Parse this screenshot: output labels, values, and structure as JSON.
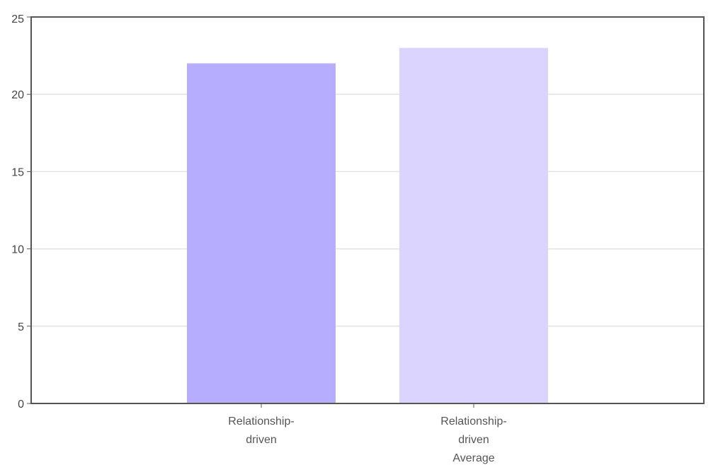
{
  "chart_data": {
    "type": "bar",
    "categories": [
      "Relationship-driven",
      "Relationship-driven Average"
    ],
    "category_label_lines": [
      [
        "Relationship-",
        "driven"
      ],
      [
        "Relationship-",
        "driven",
        "Average"
      ]
    ],
    "values": [
      22,
      23
    ],
    "colors": [
      "#b7adff",
      "#dad4ff"
    ],
    "ylim": [
      0,
      25
    ],
    "yticks": [
      0,
      5,
      10,
      15,
      20,
      25
    ],
    "grid": true,
    "legend": "none",
    "title": "",
    "xlabel": "",
    "ylabel": ""
  }
}
